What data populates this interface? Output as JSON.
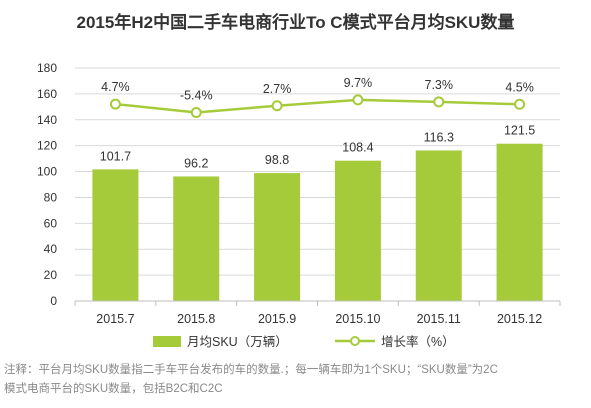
{
  "title": "2015年H2中国二手车电商行业To C模式平台月均SKU数量",
  "note": {
    "line1": "注释：平台月均SKU数量指二手车平台发布的车的数量.；每一辆车即为1个SKU；“SKU数量”为2C",
    "line2": "模式电商平台的SKU数量，包括B2C和C2C"
  },
  "colors": {
    "bar": "#a5cb3b",
    "line": "#a5cb3b",
    "marker_fill": "#ffffff",
    "grid": "#d9d9d9",
    "axis": "#bfbfbf"
  },
  "chart_data": {
    "type": "bar",
    "title": "2015年H2中国二手车电商行业To C模式平台月均SKU数量",
    "categories": [
      "2015.7",
      "2015.8",
      "2015.9",
      "2015.10",
      "2015.11",
      "2015.12"
    ],
    "ylim": [
      0,
      180
    ],
    "yticks": [
      0,
      20,
      40,
      60,
      80,
      100,
      120,
      140,
      160,
      180
    ],
    "grid": true,
    "legend_position": "bottom",
    "series": [
      {
        "name": "月均SKU（万辆）",
        "type": "bar",
        "values": [
          101.7,
          96.2,
          98.8,
          108.4,
          116.3,
          121.5
        ],
        "labels": [
          "101.7",
          "96.2",
          "98.8",
          "108.4",
          "116.3",
          "121.5"
        ]
      },
      {
        "name": "增长率（%）",
        "type": "line",
        "values": [
          4.7,
          -5.4,
          2.7,
          9.7,
          7.3,
          4.5
        ],
        "labels": [
          "4.7%",
          "-5.4%",
          "2.7%",
          "9.7%",
          "7.3%",
          "4.5%"
        ]
      }
    ]
  }
}
